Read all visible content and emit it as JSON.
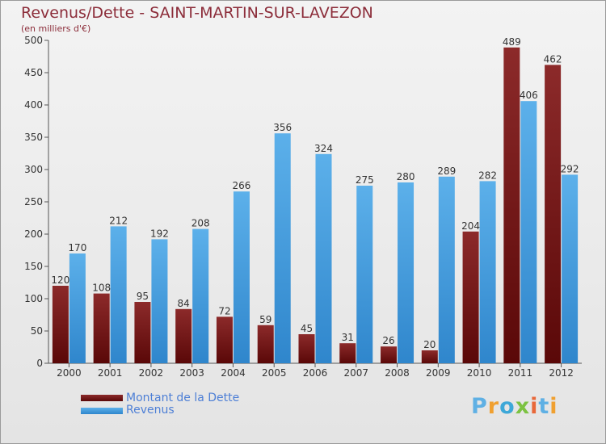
{
  "header": {
    "title": "Revenus/Dette - SAINT-MARTIN-SUR-LAVEZON",
    "subtitle": "(en milliers d'€)"
  },
  "logo": {
    "letters": [
      "P",
      "r",
      "o",
      "x",
      "i",
      "t",
      "i"
    ],
    "colors": [
      "#5fb0e4",
      "#f0a030",
      "#3da8d8",
      "#7cc242",
      "#e8683a",
      "#5fb0e4",
      "#f0a030"
    ]
  },
  "chart_data": {
    "type": "bar",
    "title": "Revenus/Dette - SAINT-MARTIN-SUR-LAVEZON",
    "subtitle": "(en milliers d'€)",
    "categories": [
      "2000",
      "2001",
      "2002",
      "2003",
      "2004",
      "2005",
      "2006",
      "2007",
      "2008",
      "2009",
      "2010",
      "2011",
      "2012"
    ],
    "series": [
      {
        "name": "Montant de la Dette",
        "color": "#7a1a1a",
        "values": [
          120,
          108,
          95,
          84,
          72,
          59,
          45,
          31,
          26,
          20,
          204,
          489,
          462
        ]
      },
      {
        "name": "Revenus",
        "color": "#4aa3e4",
        "values": [
          170,
          212,
          192,
          208,
          266,
          356,
          324,
          275,
          280,
          289,
          282,
          406,
          292
        ]
      }
    ],
    "ylim": [
      0,
      500
    ],
    "yticks": [
      0,
      50,
      100,
      150,
      200,
      250,
      300,
      350,
      400,
      450,
      500
    ],
    "grid": false,
    "legend": "bottom-left"
  }
}
